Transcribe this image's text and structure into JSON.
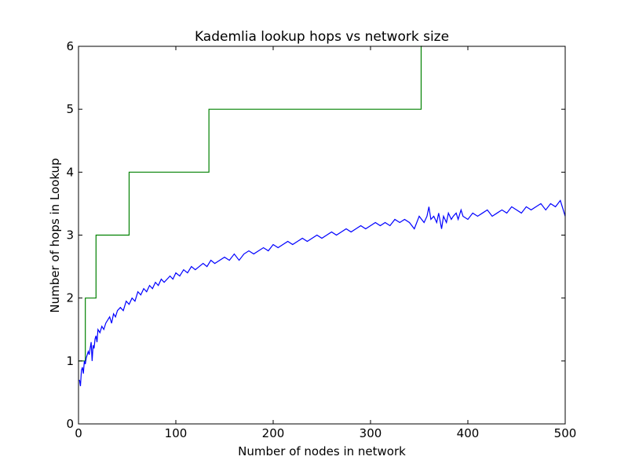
{
  "chart_data": {
    "type": "line",
    "title": "Kademlia lookup hops vs network size",
    "xlabel": "Number of nodes in network",
    "ylabel": "Number of hops in Lookup",
    "xlim": [
      0,
      500
    ],
    "ylim": [
      0,
      6
    ],
    "xticks": [
      "0",
      "100",
      "200",
      "300",
      "400",
      "500"
    ],
    "yticks": [
      "0",
      "1",
      "2",
      "3",
      "4",
      "5",
      "6"
    ],
    "grid": false,
    "legend": "none",
    "series": [
      {
        "color": "#008000",
        "interpolation": "step",
        "x": [
          0,
          7,
          7,
          18,
          18,
          52,
          52,
          134,
          134,
          352,
          352,
          353
        ],
        "y": [
          1,
          1,
          2,
          2,
          3,
          3,
          4,
          4,
          5,
          5,
          6,
          6
        ]
      },
      {
        "color": "#0000ff",
        "interpolation": "linear",
        "x": [
          1,
          2,
          3,
          4,
          5,
          6,
          7,
          8,
          9,
          10,
          11,
          12,
          13,
          14,
          15,
          16,
          17,
          18,
          19,
          20,
          22,
          24,
          26,
          28,
          30,
          32,
          34,
          36,
          38,
          40,
          43,
          46,
          49,
          52,
          55,
          58,
          61,
          64,
          67,
          70,
          73,
          76,
          79,
          82,
          85,
          88,
          91,
          94,
          97,
          100,
          104,
          108,
          112,
          116,
          120,
          124,
          128,
          132,
          136,
          140,
          145,
          150,
          155,
          160,
          165,
          170,
          175,
          180,
          185,
          190,
          195,
          200,
          205,
          210,
          215,
          220,
          225,
          230,
          235,
          240,
          245,
          250,
          255,
          260,
          265,
          270,
          275,
          280,
          285,
          290,
          295,
          300,
          305,
          310,
          315,
          320,
          325,
          330,
          335,
          340,
          345,
          350,
          355,
          358,
          360,
          362,
          365,
          368,
          370,
          373,
          375,
          378,
          380,
          383,
          385,
          388,
          390,
          393,
          395,
          400,
          405,
          410,
          415,
          420,
          425,
          430,
          435,
          440,
          445,
          450,
          455,
          460,
          465,
          470,
          475,
          480,
          485,
          490,
          495,
          500
        ],
        "y": [
          0.7,
          0.6,
          0.85,
          0.9,
          0.8,
          1.0,
          0.95,
          1.05,
          1.1,
          1.15,
          1.1,
          1.2,
          1.3,
          1.0,
          1.25,
          1.2,
          1.35,
          1.4,
          1.3,
          1.5,
          1.45,
          1.55,
          1.5,
          1.6,
          1.65,
          1.7,
          1.6,
          1.75,
          1.7,
          1.8,
          1.85,
          1.8,
          1.95,
          1.9,
          2.0,
          1.95,
          2.1,
          2.05,
          2.15,
          2.1,
          2.2,
          2.15,
          2.25,
          2.2,
          2.3,
          2.25,
          2.3,
          2.35,
          2.3,
          2.4,
          2.35,
          2.45,
          2.4,
          2.5,
          2.45,
          2.5,
          2.55,
          2.5,
          2.6,
          2.55,
          2.6,
          2.65,
          2.6,
          2.7,
          2.6,
          2.7,
          2.75,
          2.7,
          2.75,
          2.8,
          2.75,
          2.85,
          2.8,
          2.85,
          2.9,
          2.85,
          2.9,
          2.95,
          2.9,
          2.95,
          3.0,
          2.95,
          3.0,
          3.05,
          3.0,
          3.05,
          3.1,
          3.05,
          3.1,
          3.15,
          3.1,
          3.15,
          3.2,
          3.15,
          3.2,
          3.15,
          3.25,
          3.2,
          3.25,
          3.2,
          3.1,
          3.3,
          3.2,
          3.3,
          3.45,
          3.25,
          3.3,
          3.2,
          3.35,
          3.1,
          3.3,
          3.2,
          3.35,
          3.25,
          3.3,
          3.35,
          3.25,
          3.4,
          3.3,
          3.25,
          3.35,
          3.3,
          3.35,
          3.4,
          3.3,
          3.35,
          3.4,
          3.35,
          3.45,
          3.4,
          3.35,
          3.45,
          3.4,
          3.45,
          3.5,
          3.4,
          3.5,
          3.45,
          3.55,
          3.3
        ]
      }
    ]
  }
}
